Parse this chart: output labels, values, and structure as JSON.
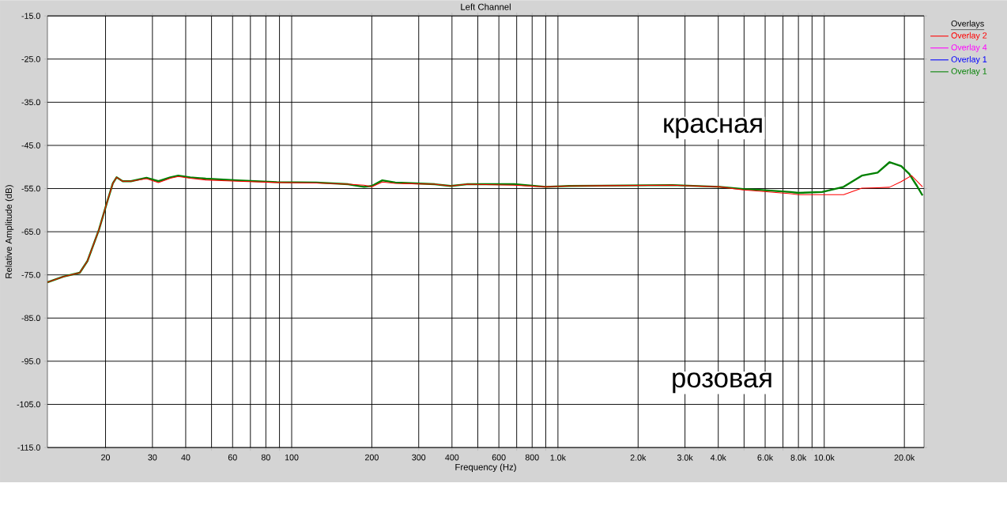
{
  "chart_data": {
    "type": "line",
    "title": "Left Channel",
    "xlabel": "Frequency (Hz)",
    "ylabel": "Relative Amplitude (dB)",
    "legend_title": "Overlays",
    "legend": "top right",
    "grid": true,
    "log": "x",
    "line_style": "solid",
    "marker": "none",
    "xlim": [
      12.1,
      23700
    ],
    "ylim": [
      -115,
      -15
    ],
    "xticks": [
      20,
      30,
      40,
      {
        "value": 50,
        "label": null
      },
      60,
      {
        "value": 70,
        "label": null
      },
      80,
      {
        "value": 90,
        "label": null
      },
      100,
      200,
      300,
      400,
      {
        "value": 500,
        "label": null
      },
      600,
      {
        "value": 700,
        "label": null
      },
      800,
      {
        "value": 900,
        "label": null
      },
      {
        "value": 1000,
        "label": "1.0k"
      },
      {
        "value": 2000,
        "label": "2.0k"
      },
      {
        "value": 3000,
        "label": "3.0k"
      },
      {
        "value": 4000,
        "label": "4.0k"
      },
      {
        "value": 5000,
        "label": null
      },
      {
        "value": 6000,
        "label": "6.0k"
      },
      {
        "value": 7000,
        "label": null
      },
      {
        "value": 8000,
        "label": "8.0k"
      },
      {
        "value": 9000,
        "label": null
      },
      {
        "value": 10000,
        "label": "10.0k"
      },
      {
        "value": 20000,
        "label": "20.0k"
      }
    ],
    "yticks": [
      {
        "value": -115,
        "label": "-115.0"
      },
      {
        "value": -105,
        "label": "-105.0"
      },
      {
        "value": -95,
        "label": "-95.0"
      },
      {
        "value": -85,
        "label": "-85.0"
      },
      {
        "value": -75,
        "label": "-75.0"
      },
      {
        "value": -65,
        "label": "-65.0"
      },
      {
        "value": -55,
        "label": "-55.0"
      },
      {
        "value": -45,
        "label": "-45.0"
      },
      {
        "value": -35,
        "label": "-35.0"
      },
      {
        "value": -25,
        "label": "-25.0"
      },
      {
        "value": -15,
        "label": "-15.0"
      }
    ],
    "annotations": [
      "красная",
      "розовая"
    ],
    "series": [
      {
        "name": "Overlay 2",
        "color": "#ff0000",
        "x": [
          12.1,
          13.9,
          16.0,
          17.1,
          18.9,
          20.3,
          21.3,
          22.0,
          23.2,
          24.9,
          28.5,
          31.6,
          35.0,
          37.5,
          41.6,
          47.6,
          62.6,
          88,
          124,
          163,
          187,
          200,
          219,
          245,
          345,
          396,
          454,
          684,
          900,
          1104,
          2686,
          4046,
          4970,
          5690,
          7480,
          8000,
          9820,
          11830,
          13840,
          15860,
          17580,
          19460,
          21280,
          23400
        ],
        "values": [
          -76.7,
          -75.4,
          -74.5,
          -71.8,
          -64.5,
          -58.0,
          -53.8,
          -52.4,
          -53.3,
          -53.3,
          -52.7,
          -53.6,
          -52.6,
          -52.2,
          -52.6,
          -53.0,
          -53.3,
          -53.6,
          -53.7,
          -54.0,
          -54.2,
          -54.6,
          -53.5,
          -53.8,
          -54.0,
          -54.4,
          -54.0,
          -54.2,
          -54.6,
          -54.4,
          -54.2,
          -54.6,
          -55.3,
          -55.6,
          -56.2,
          -56.4,
          -56.4,
          -56.4,
          -54.9,
          -54.8,
          -54.7,
          -53.4,
          -52.0,
          -54.6
        ]
      },
      {
        "name": "Overlay 4",
        "color": "#ff00ff"
      },
      {
        "name": "Overlay 1",
        "color": "#0000ff"
      },
      {
        "name": "Overlay 1",
        "color": "#008000",
        "x": [
          12.1,
          13.9,
          16.0,
          17.1,
          18.9,
          20.3,
          21.3,
          22.0,
          23.2,
          24.9,
          28.5,
          31.6,
          35.0,
          37.5,
          41.6,
          47.6,
          62.6,
          88,
          124,
          163,
          187,
          200,
          219,
          245,
          345,
          396,
          454,
          684,
          900,
          1104,
          2686,
          4046,
          4970,
          5690,
          7480,
          8000,
          9820,
          11830,
          13840,
          15860,
          17580,
          19460,
          20850,
          22300,
          23400
        ],
        "values": [
          -76.7,
          -75.4,
          -74.5,
          -71.8,
          -64.5,
          -58.0,
          -53.8,
          -52.4,
          -53.3,
          -53.3,
          -52.5,
          -53.3,
          -52.4,
          -52.0,
          -52.4,
          -52.7,
          -53.1,
          -53.5,
          -53.6,
          -54.0,
          -54.6,
          -54.4,
          -53.1,
          -53.6,
          -54.0,
          -54.4,
          -54.0,
          -54.0,
          -54.6,
          -54.4,
          -54.2,
          -54.6,
          -55.1,
          -55.3,
          -55.8,
          -56.0,
          -55.8,
          -54.6,
          -52.0,
          -51.3,
          -48.9,
          -49.8,
          -51.6,
          -54.4,
          -56.6
        ]
      }
    ]
  }
}
